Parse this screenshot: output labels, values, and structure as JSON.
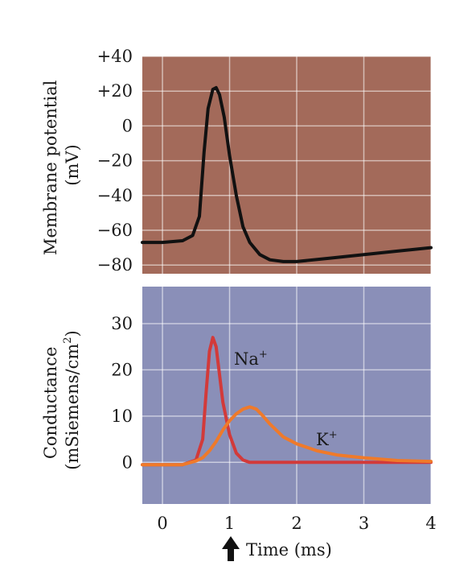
{
  "chart_data": [
    {
      "type": "line",
      "ylabel": [
        "Membrane potential",
        "(mV)"
      ],
      "ylim": [
        -85,
        40
      ],
      "xlim": [
        -0.3,
        4
      ],
      "yticks": [
        40,
        20,
        0,
        -20,
        -40,
        -60,
        -80
      ],
      "ytick_labels": [
        "+40",
        "+20",
        "0",
        "−20",
        "−40",
        "−60",
        "−80"
      ],
      "grid": true,
      "background": "#A36A5A",
      "series": [
        {
          "color": "#111111",
          "x": [
            -0.3,
            0.0,
            0.3,
            0.45,
            0.55,
            0.62,
            0.68,
            0.75,
            0.8,
            0.85,
            0.92,
            1.0,
            1.1,
            1.2,
            1.3,
            1.45,
            1.6,
            1.8,
            2.0,
            2.5,
            3.0,
            3.5,
            4.0
          ],
          "y": [
            -67,
            -67,
            -66,
            -63,
            -52,
            -15,
            10,
            21,
            22,
            18,
            5,
            -17,
            -40,
            -58,
            -67,
            -74,
            -77,
            -78,
            -78,
            -76,
            -74,
            -72,
            -70
          ]
        }
      ]
    },
    {
      "type": "line",
      "ylabel": [
        "Conductance",
        "(mSiemens/cm",
        "2",
        ")"
      ],
      "ylim": [
        -9,
        38
      ],
      "xlim": [
        -0.3,
        4
      ],
      "yticks": [
        30,
        20,
        10,
        0
      ],
      "ytick_labels": [
        "30",
        "20",
        "10",
        "0"
      ],
      "xticks": [
        0,
        1,
        2,
        3,
        4
      ],
      "xtick_labels": [
        "0",
        "1",
        "2",
        "3",
        "4"
      ],
      "xlabel": "Time (ms)",
      "grid": true,
      "background": "#8A8FB8",
      "series": [
        {
          "name": "Na",
          "name_sup": "+",
          "color": "#D23A3A",
          "x": [
            -0.3,
            0.3,
            0.5,
            0.6,
            0.65,
            0.7,
            0.75,
            0.8,
            0.85,
            0.9,
            1.0,
            1.1,
            1.2,
            1.3,
            1.5,
            2.0,
            3.0,
            4.0
          ],
          "y": [
            -0.5,
            -0.5,
            0.5,
            5,
            15,
            24,
            27,
            25,
            19,
            13,
            6,
            2,
            0.5,
            0,
            0,
            0,
            0,
            0
          ]
        },
        {
          "name": "K",
          "name_sup": "+",
          "color": "#EF7A2A",
          "x": [
            -0.3,
            0.3,
            0.5,
            0.6,
            0.7,
            0.8,
            0.9,
            1.0,
            1.1,
            1.2,
            1.3,
            1.4,
            1.5,
            1.6,
            1.8,
            2.0,
            2.3,
            2.6,
            3.0,
            3.5,
            4.0
          ],
          "y": [
            -0.5,
            -0.5,
            0.3,
            1,
            2.5,
            4.5,
            7,
            9,
            10.5,
            11.5,
            12,
            11.5,
            10,
            8.3,
            5.5,
            4,
            2.5,
            1.6,
            1,
            0.4,
            0.2
          ]
        }
      ]
    }
  ],
  "stimulus_marker": "up-arrow-icon"
}
